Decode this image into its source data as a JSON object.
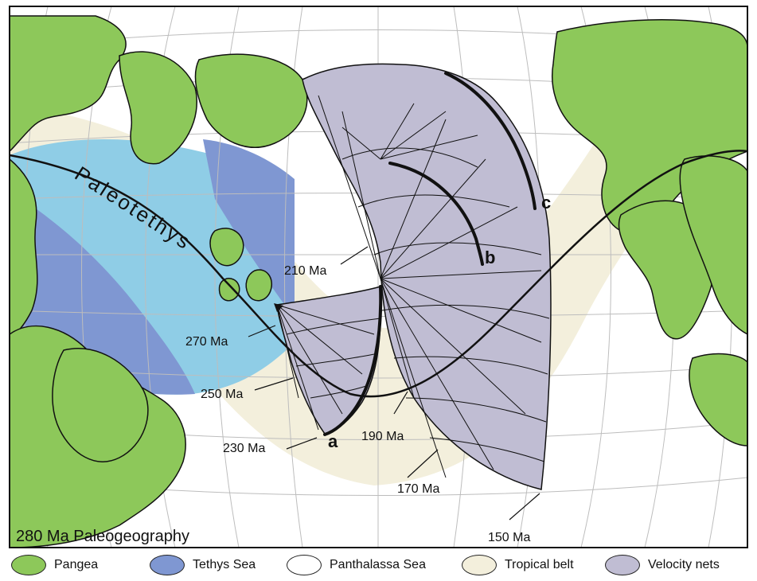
{
  "map": {
    "title": "280 Ma Paleogeography",
    "ocean_label": "Paleotethys",
    "tracks": [
      {
        "id": "a",
        "label": "a"
      },
      {
        "id": "b",
        "label": "b"
      },
      {
        "id": "c",
        "label": "c"
      }
    ],
    "age_labels": [
      {
        "id": "270",
        "text": "270 Ma"
      },
      {
        "id": "250",
        "text": "250 Ma"
      },
      {
        "id": "230",
        "text": "230 Ma"
      },
      {
        "id": "210",
        "text": "210 Ma"
      },
      {
        "id": "190",
        "text": "190 Ma"
      },
      {
        "id": "170",
        "text": "170 Ma"
      },
      {
        "id": "150",
        "text": "150 Ma"
      }
    ]
  },
  "legend": [
    {
      "label": "Pangea",
      "color": "#8dc85a"
    },
    {
      "label": "Tethys Sea",
      "color": "#7f97d2"
    },
    {
      "label": "Panthalassa Sea",
      "color": "#ffffff"
    },
    {
      "label": "Tropical belt",
      "color": "#f3efdc"
    },
    {
      "label": "Velocity nets",
      "color": "#c0bdd3"
    }
  ],
  "colors": {
    "pangea": "#8dc85a",
    "tethys": "#7f97d2",
    "paleotethys": "#8fcde6",
    "panthalassa": "#ffffff",
    "tropical": "#f3efdc",
    "velocity": "#c0bdd3",
    "grid": "#bdbdbd",
    "outline": "#111111"
  }
}
